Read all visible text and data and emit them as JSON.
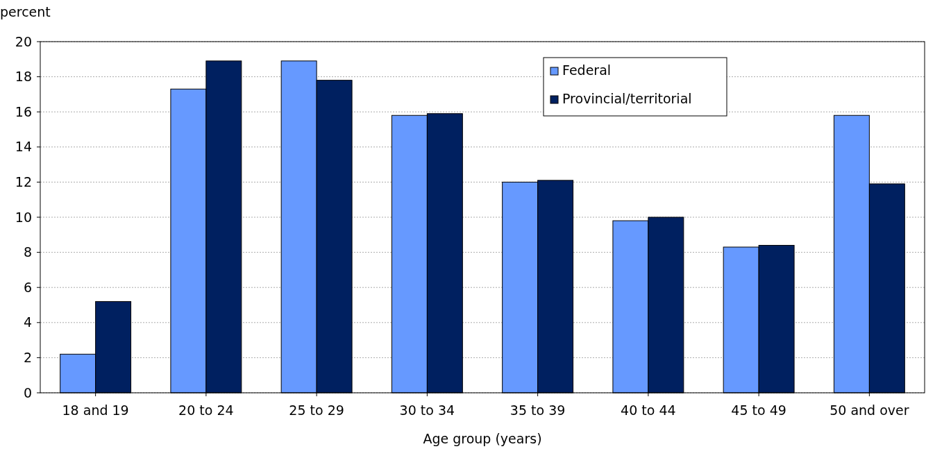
{
  "chart_data": {
    "type": "bar",
    "ylabel": "percent",
    "xlabel": "Age group (years)",
    "categories": [
      "18 and 19",
      "20 to 24",
      "25 to 29",
      "30 to 34",
      "35 to 39",
      "40 to 44",
      "45 to 49",
      "50 and over"
    ],
    "series": [
      {
        "name": "Federal",
        "color": "#6699ff",
        "values": [
          2.2,
          17.3,
          18.9,
          15.8,
          12.0,
          9.8,
          8.3,
          15.8
        ]
      },
      {
        "name": "Provincial/territorial",
        "color": "#002060",
        "values": [
          5.2,
          18.9,
          17.8,
          15.9,
          12.1,
          10.0,
          8.4,
          11.9
        ]
      }
    ],
    "ylim": [
      0,
      20
    ],
    "yticks": [
      0,
      2,
      4,
      6,
      8,
      10,
      12,
      14,
      16,
      18,
      20
    ],
    "grid": "y",
    "legend": "top right"
  }
}
